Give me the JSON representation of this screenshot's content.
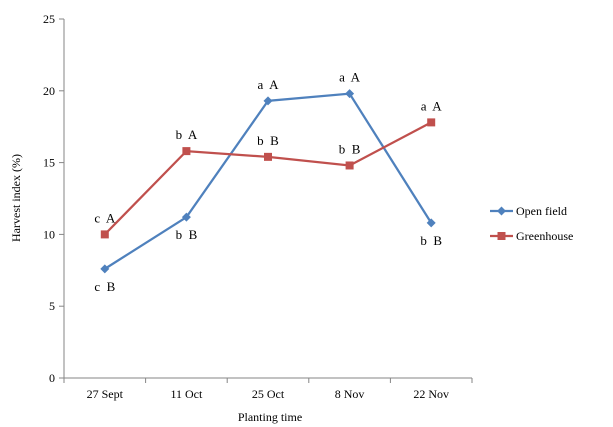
{
  "chart_data": {
    "type": "line",
    "xlabel": "Planting  time",
    "ylabel": "Harvest index (%)",
    "ylim": [
      0,
      25
    ],
    "y_ticks": [
      "0",
      "5",
      "10",
      "15",
      "20",
      "25"
    ],
    "categories": [
      "27 Sept",
      "11 Oct",
      "25 Oct",
      "8 Nov",
      "22 Nov"
    ],
    "grid": false,
    "legend_position": "right",
    "series": [
      {
        "name": "Open field",
        "color": "#4f81bd",
        "marker": "diamond",
        "values": [
          7.6,
          11.2,
          19.3,
          19.8,
          10.8
        ],
        "labels": [
          "c  B",
          "b  B",
          "a  A",
          "a  A",
          "b  B"
        ],
        "label_side": [
          "below",
          "below",
          "above",
          "above",
          "below"
        ]
      },
      {
        "name": "Greenhouse",
        "color": "#c0504d",
        "marker": "square",
        "values": [
          10.0,
          15.8,
          15.4,
          14.8,
          17.8
        ],
        "labels": [
          "c  A",
          "b  A",
          "b  B",
          "b  B",
          "a  A"
        ],
        "label_side": [
          "above",
          "above",
          "above",
          "above",
          "above"
        ]
      }
    ]
  }
}
